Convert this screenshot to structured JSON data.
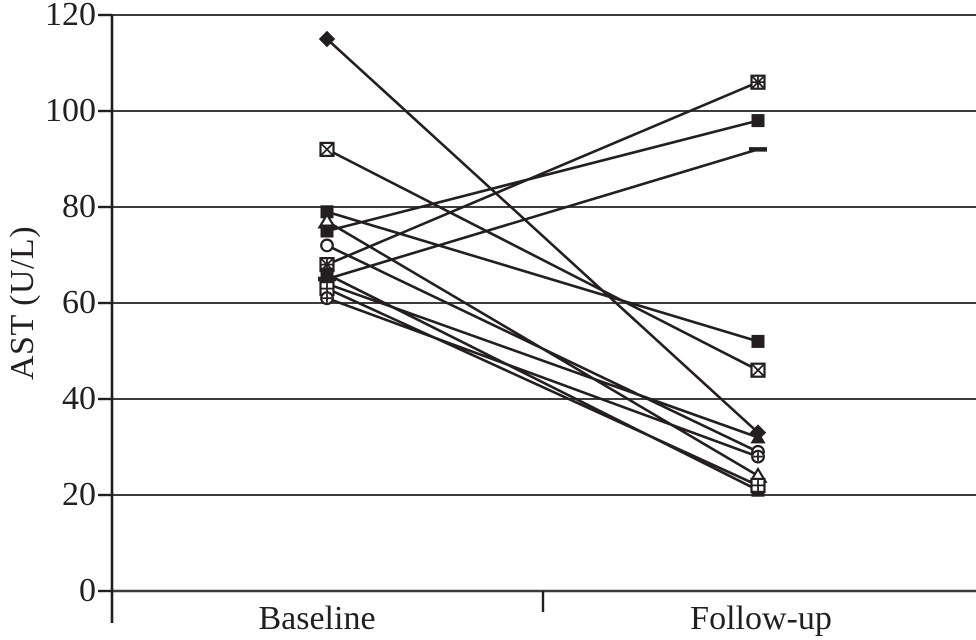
{
  "chart_data": {
    "type": "line",
    "subtype": "paired-slope-plot",
    "title": "",
    "xlabel": "",
    "ylabel": "AST (U/L)",
    "ylim": [
      0,
      120
    ],
    "yticks": [
      0,
      20,
      40,
      60,
      80,
      100,
      120
    ],
    "grid": "horizontal",
    "legend": "none",
    "categories": [
      "Baseline",
      "Follow-up"
    ],
    "series": [
      {
        "marker": "diamond-filled",
        "values": [
          115,
          33
        ]
      },
      {
        "marker": "square-x",
        "values": [
          92,
          46
        ]
      },
      {
        "marker": "square-filled",
        "values": [
          79,
          52
        ]
      },
      {
        "marker": "triangle-open",
        "values": [
          77,
          24
        ]
      },
      {
        "marker": "square-filled",
        "values": [
          75,
          98
        ]
      },
      {
        "marker": "circle-open",
        "values": [
          72,
          29
        ]
      },
      {
        "marker": "square-star",
        "values": [
          68,
          106
        ]
      },
      {
        "marker": "square-filled",
        "values": [
          66,
          21
        ]
      },
      {
        "marker": "dash",
        "values": [
          65,
          92
        ]
      },
      {
        "marker": "triangle-filled",
        "values": [
          64,
          32
        ]
      },
      {
        "marker": "square-plus",
        "values": [
          63,
          22
        ]
      },
      {
        "marker": "circle-plus",
        "values": [
          61,
          28
        ]
      }
    ],
    "colors": {
      "line": "#231f20",
      "grid": "#3d3d3d",
      "axis": "#231f20",
      "text": "#231f20",
      "background": "#ffffff"
    }
  }
}
